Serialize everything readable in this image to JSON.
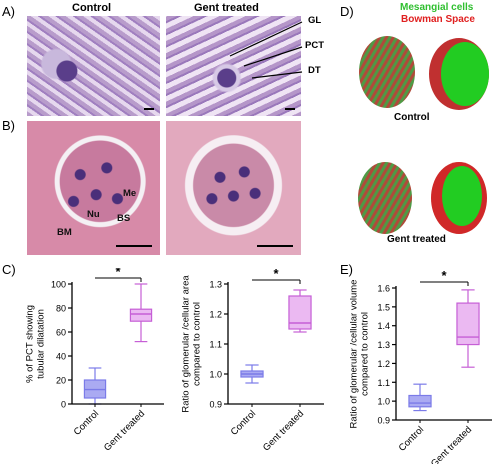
{
  "panels": {
    "A": "A)",
    "B": "B)",
    "C": "C)",
    "D": "D)",
    "E": "E)"
  },
  "micrographs": {
    "control_title": "Control",
    "gent_title": "Gent treated",
    "callouts": [
      "GL",
      "PCT",
      "DT"
    ],
    "cell_labels": [
      "Me",
      "Nu",
      "BS",
      "BM"
    ]
  },
  "render3d": {
    "legend_mesangial": "Mesangial cells",
    "legend_bowman": "Bowman Space",
    "control_label": "Control",
    "gent_label": "Gent treated",
    "colors": {
      "mesangial": "#2fbf2f",
      "bowman": "#e02020"
    }
  },
  "chart_data": [
    {
      "type": "box",
      "categories": [
        "Control",
        "Gent treated"
      ],
      "ylabel": "% of PCT showing tubular dilatation",
      "ylim": [
        0,
        100
      ],
      "yticks": [
        0,
        20,
        40,
        60,
        80,
        100
      ],
      "boxes": [
        {
          "category": "Control",
          "min": 0,
          "q1": 5,
          "median": 12,
          "q3": 20,
          "max": 30,
          "color": "#7b7be8",
          "fill": "#aaaaf2"
        },
        {
          "category": "Gent treated",
          "min": 52,
          "q1": 69,
          "median": 75,
          "q3": 79,
          "max": 100,
          "color": "#c65fd6",
          "fill": "#ebb9f2"
        }
      ],
      "significance": "*"
    },
    {
      "type": "box",
      "categories": [
        "Control",
        "Gent treated"
      ],
      "ylabel": "Ratio of glomerular /cellular area compared to control",
      "ylim": [
        0.9,
        1.3
      ],
      "yticks": [
        0.9,
        1.0,
        1.1,
        1.2,
        1.3
      ],
      "boxes": [
        {
          "category": "Control",
          "min": 0.97,
          "q1": 0.99,
          "median": 1.0,
          "q3": 1.01,
          "max": 1.03,
          "color": "#7b7be8",
          "fill": "#aaaaf2"
        },
        {
          "category": "Gent treated",
          "min": 1.14,
          "q1": 1.15,
          "median": 1.17,
          "q3": 1.26,
          "max": 1.28,
          "color": "#c65fd6",
          "fill": "#ebb9f2"
        }
      ],
      "significance": "*"
    },
    {
      "type": "box",
      "categories": [
        "Control",
        "Gent treated"
      ],
      "ylabel": "Ratio of glomerular /cellular volume compared to control",
      "ylim": [
        0.9,
        1.6
      ],
      "yticks": [
        0.9,
        1.0,
        1.1,
        1.2,
        1.3,
        1.4,
        1.5,
        1.6
      ],
      "boxes": [
        {
          "category": "Control",
          "min": 0.95,
          "q1": 0.97,
          "median": 0.99,
          "q3": 1.03,
          "max": 1.09,
          "color": "#7b7be8",
          "fill": "#aaaaf2"
        },
        {
          "category": "Gent treated",
          "min": 1.18,
          "q1": 1.3,
          "median": 1.34,
          "q3": 1.52,
          "max": 1.59,
          "color": "#c65fd6",
          "fill": "#ebb9f2"
        }
      ],
      "significance": "*"
    }
  ]
}
